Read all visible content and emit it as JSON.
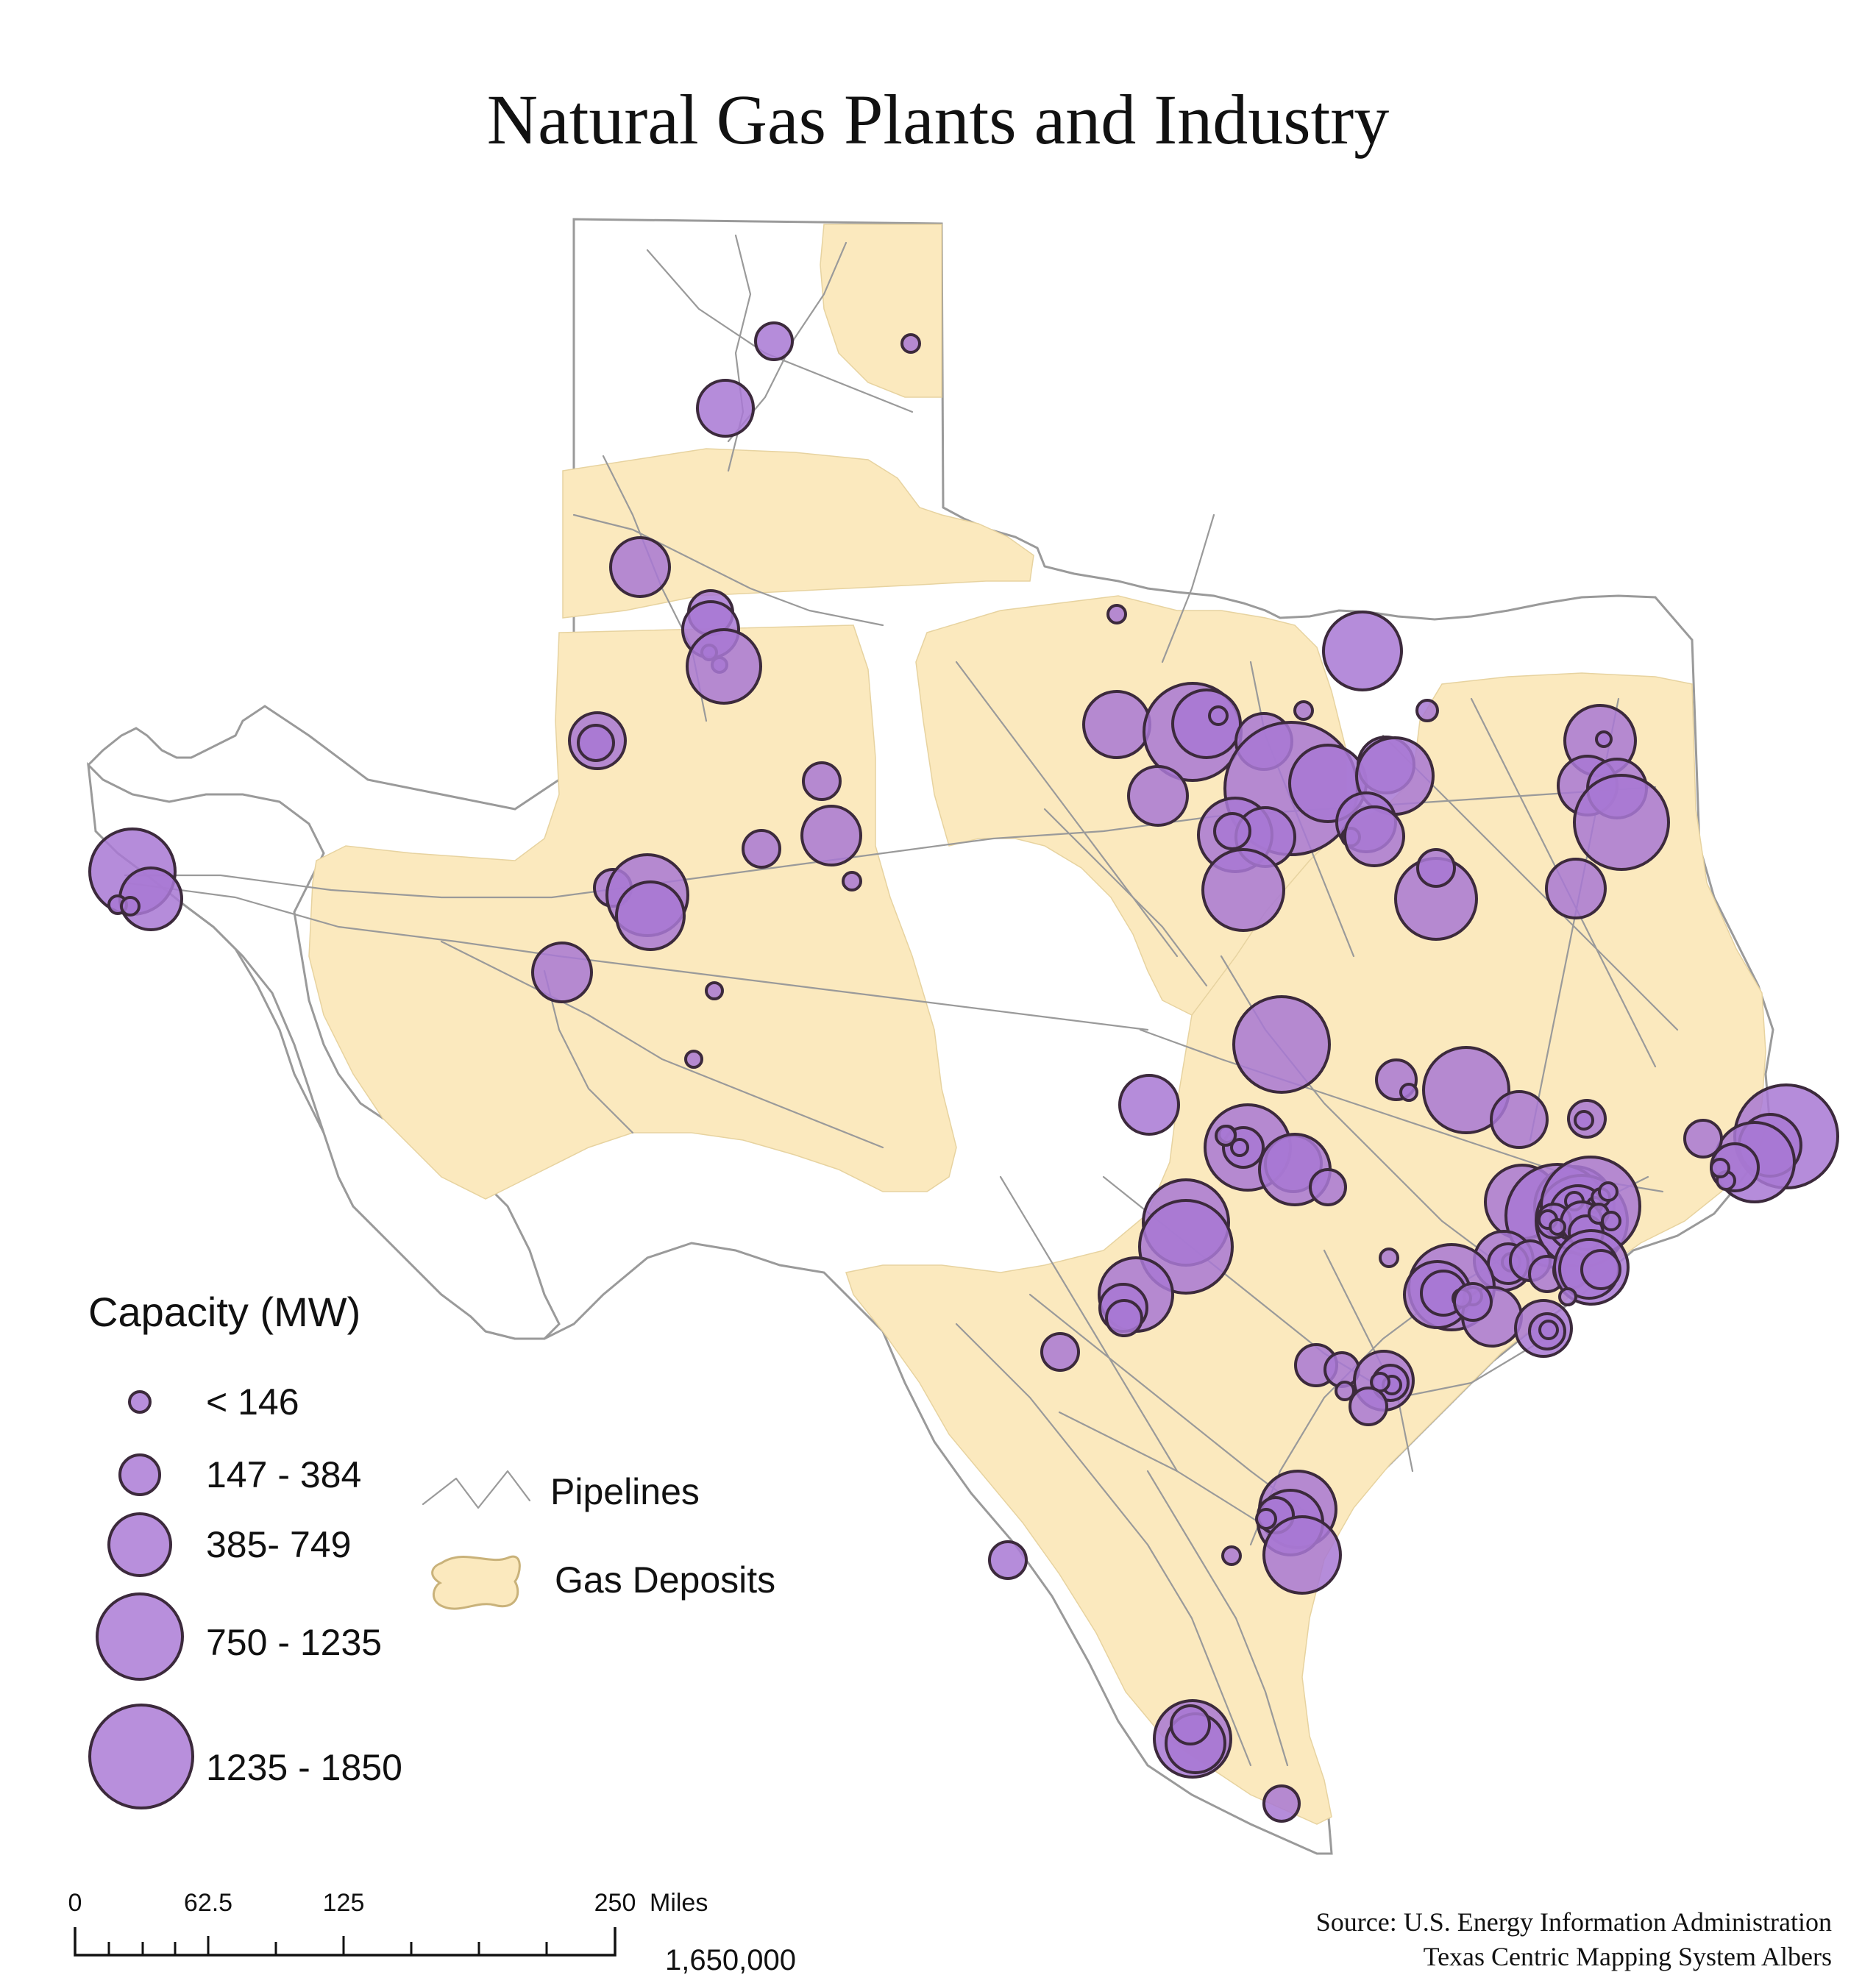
{
  "title": "Natural Gas Plants and Industry",
  "legend": {
    "title": "Capacity (MW)",
    "classes": [
      {
        "label": "< 146"
      },
      {
        "label": "147 - 384"
      },
      {
        "label": "385- 749"
      },
      {
        "label": "750 - 1235"
      },
      {
        "label": "1235 - 1850"
      }
    ],
    "pipelines_label": "Pipelines",
    "deposits_label": "Gas Deposits"
  },
  "scale_bar": {
    "ticks": [
      "0",
      "62.5",
      "125",
      "250"
    ],
    "unit": "Miles",
    "ratio": "1,650,000"
  },
  "source": {
    "line1": "Source: U.S. Energy Information Administration",
    "line2": "Texas Centric Mapping System Albers"
  },
  "colors": {
    "plant_fill": "#a878d3",
    "plant_stroke": "#3c2a3c",
    "deposit_fill": "#fbe9be",
    "pipeline": "#9a9a9a"
  }
}
